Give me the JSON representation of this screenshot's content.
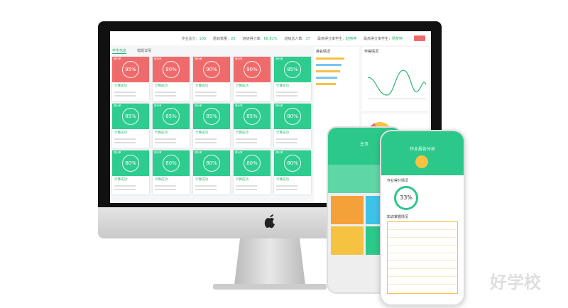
{
  "header": {
    "stats": [
      {
        "label": "作业总分：",
        "value": "100"
      },
      {
        "label": "题目数量：",
        "value": "20"
      },
      {
        "label": "班级得分率：",
        "value": "66.81%"
      },
      {
        "label": "班级总人数：",
        "value": "37"
      },
      {
        "label": "最高得分率学生：",
        "value": "赵丽坤"
      },
      {
        "label": "最高得分率学生：",
        "value": "杨梦婷"
      }
    ]
  },
  "tabs": [
    "学生信息",
    "错题详情"
  ],
  "panels": [
    "排名情况",
    "作答情况"
  ],
  "cards": [
    {
      "badge": "得分率",
      "score": "95%",
      "status": "计算成功",
      "tone": "red"
    },
    {
      "badge": "得分率",
      "score": "90%",
      "status": "计算成功",
      "tone": "red"
    },
    {
      "badge": "得分率",
      "score": "90%",
      "status": "计算成功",
      "tone": "red"
    },
    {
      "badge": "得分率",
      "score": "90%",
      "status": "计算成功",
      "tone": "red"
    },
    {
      "badge": "得分率",
      "score": "85%",
      "status": "计算成功",
      "tone": "green"
    },
    {
      "badge": "得分率",
      "score": "85%",
      "status": "计算成功",
      "tone": "green"
    },
    {
      "badge": "得分率",
      "score": "85%",
      "status": "计算成功",
      "tone": "green"
    },
    {
      "badge": "得分率",
      "score": "85%",
      "status": "计算成功",
      "tone": "green"
    },
    {
      "badge": "得分率",
      "score": "85%",
      "status": "计算成功",
      "tone": "green"
    },
    {
      "badge": "得分率",
      "score": "80%",
      "status": "计算成功",
      "tone": "green"
    },
    {
      "badge": "得分率",
      "score": "80%",
      "status": "计算成功",
      "tone": "green"
    },
    {
      "badge": "得分率",
      "score": "80%",
      "status": "计算成功",
      "tone": "green"
    },
    {
      "badge": "得分率",
      "score": "80%",
      "status": "计算成功",
      "tone": "green"
    },
    {
      "badge": "得分率",
      "score": "80%",
      "status": "计算成功",
      "tone": "green"
    },
    {
      "badge": "得分率",
      "score": "80%",
      "status": "计算成功",
      "tone": "green"
    }
  ],
  "phone_home": {
    "title": "主页"
  },
  "phone_report": {
    "title": "作业报告分析",
    "score": "33%",
    "sections": [
      "作业得分情况",
      "知识掌握情况"
    ]
  },
  "watermark": "好学校"
}
